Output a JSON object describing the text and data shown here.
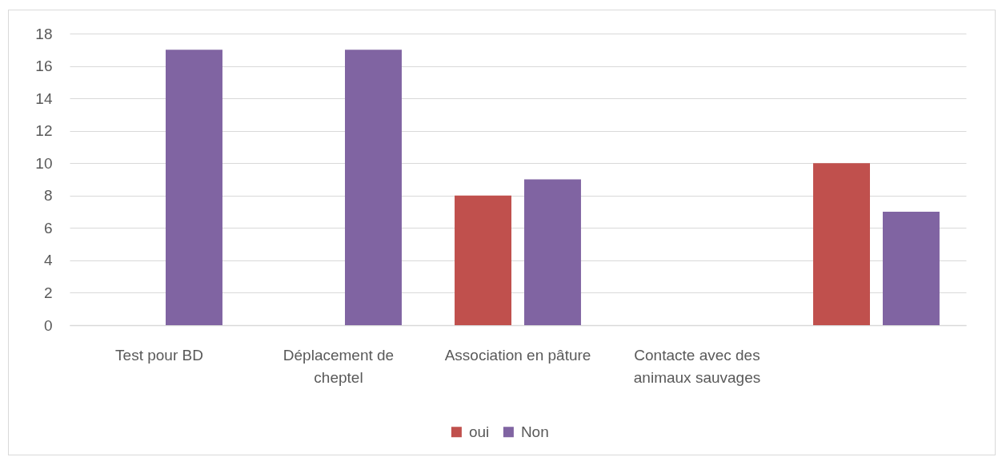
{
  "chart_data": {
    "type": "bar",
    "categories": [
      "Test pour BD",
      "Déplacement de cheptel",
      "Association en pâture",
      "Contacte avec des animaux sauvages",
      null
    ],
    "series": [
      {
        "name": "oui",
        "color": "#c0504d",
        "values": [
          null,
          null,
          8,
          null,
          10
        ]
      },
      {
        "name": "Non",
        "color": "#8064a2",
        "values": [
          17,
          17,
          9,
          null,
          7
        ]
      }
    ],
    "ylim": [
      0,
      18
    ],
    "yticks": [
      0,
      2,
      4,
      6,
      8,
      10,
      12,
      14,
      16,
      18
    ],
    "grid": "y",
    "legend": "bottom"
  }
}
